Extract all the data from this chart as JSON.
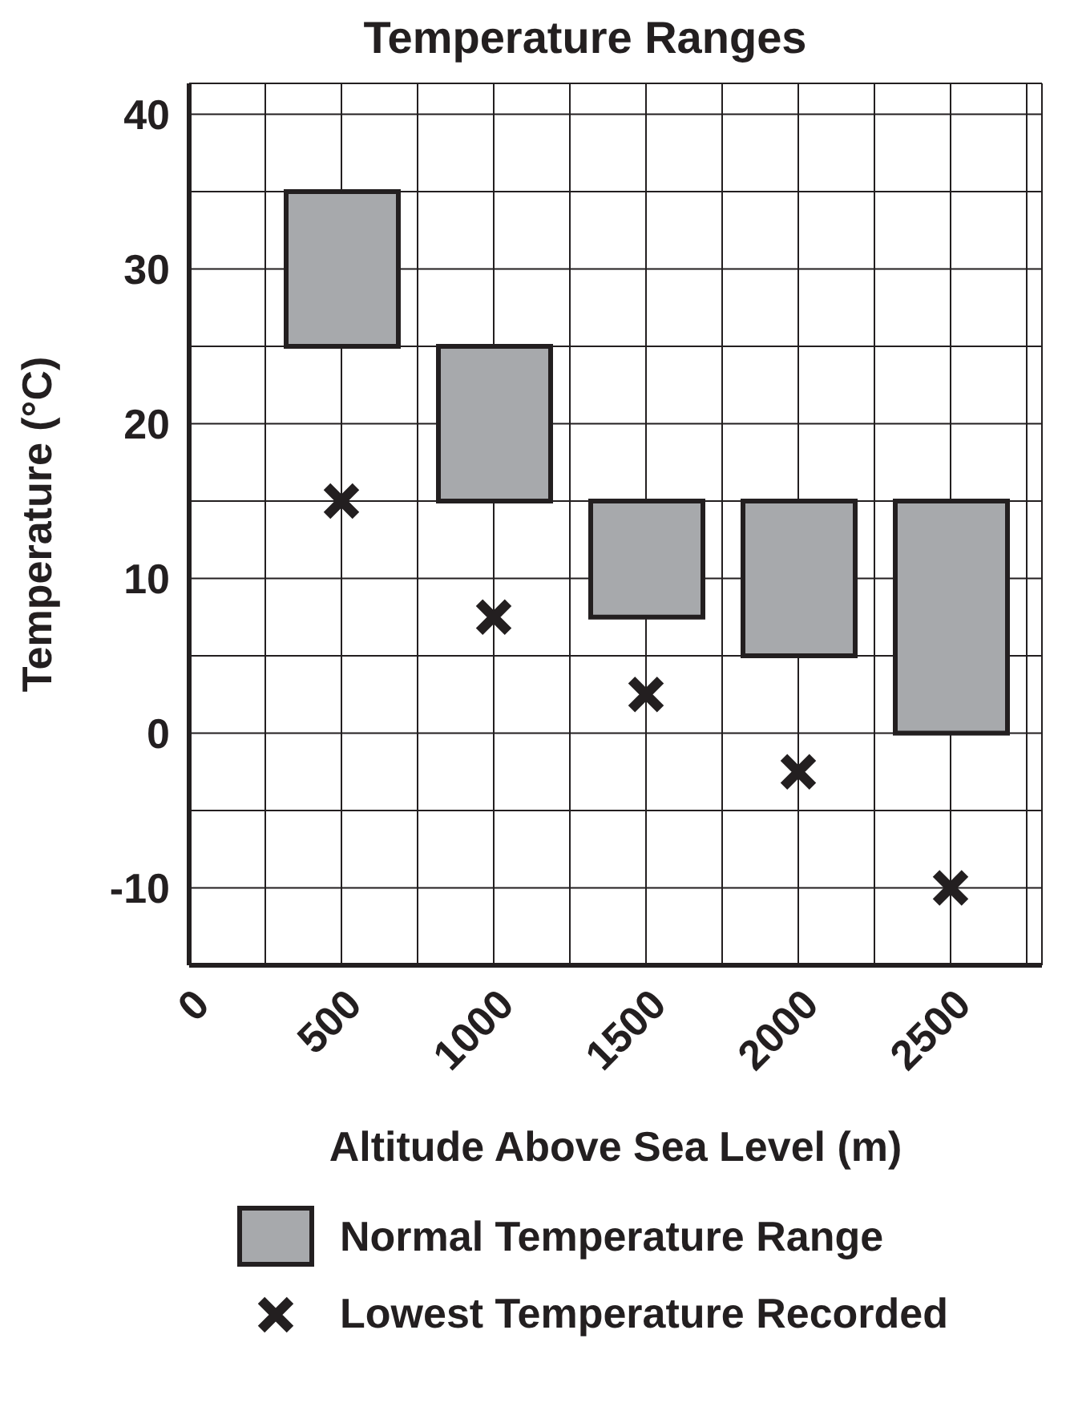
{
  "chart_data": {
    "type": "bar",
    "title": "Temperature Ranges",
    "xlabel": "Altitude Above Sea Level (m)",
    "ylabel": "Temperature (°C)",
    "x": [
      500,
      1000,
      1500,
      2000,
      2500
    ],
    "xlim": [
      0,
      2800
    ],
    "xticks": [
      0,
      {
        "value": 250,
        "label": null
      },
      500,
      {
        "value": 750,
        "label": null
      },
      1000,
      {
        "value": 1250,
        "label": null
      },
      1500,
      {
        "value": 1750,
        "label": null
      },
      2000,
      {
        "value": 2250,
        "label": null
      },
      2500,
      {
        "value": 2750,
        "label": null
      }
    ],
    "ylim": [
      -15,
      42
    ],
    "yticks": [
      {
        "value": -15,
        "label": null
      },
      -10,
      {
        "value": -5,
        "label": null
      },
      0,
      {
        "value": 5,
        "label": null
      },
      10,
      {
        "value": 15,
        "label": null
      },
      20,
      {
        "value": 25,
        "label": null
      },
      30,
      {
        "value": 35,
        "label": null
      },
      40
    ],
    "grid": true,
    "legend": "bottom",
    "series": [
      {
        "name": "Normal Temperature Range",
        "color": "#a7a9ac",
        "base": [
          25,
          15,
          7.5,
          5,
          0
        ],
        "values": [
          10,
          10,
          7.5,
          10,
          15
        ]
      },
      {
        "name": "Lowest Temperature Recorded",
        "type": "scatter",
        "color": "#231f20",
        "marker": "cross",
        "values": [
          15,
          7.5,
          2.5,
          -2.5,
          -10
        ]
      }
    ]
  }
}
